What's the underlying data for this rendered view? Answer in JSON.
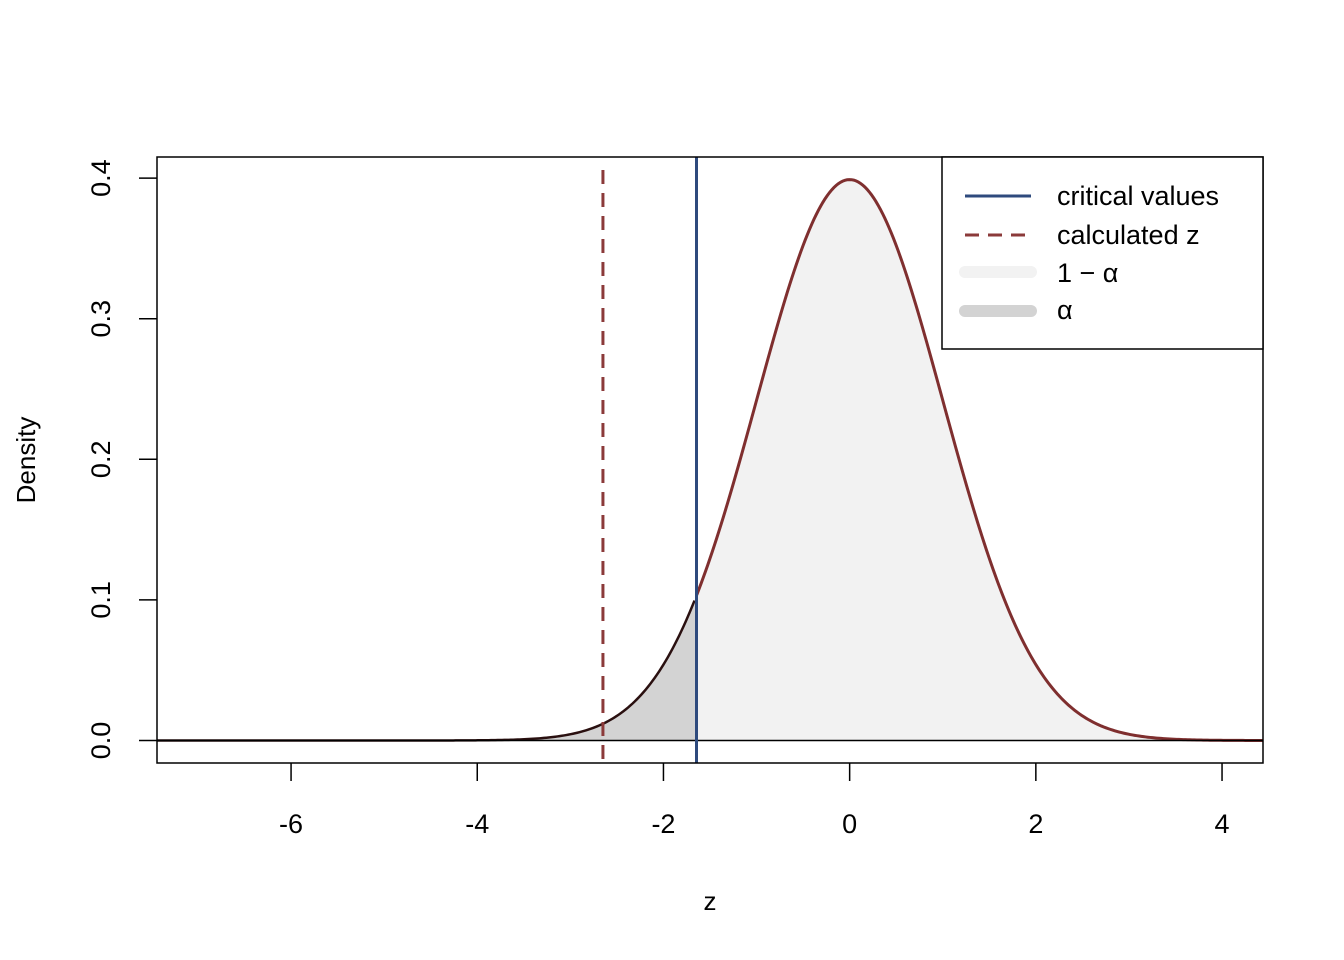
{
  "chart_data": {
    "type": "area",
    "title": "",
    "xlabel": "z",
    "ylabel": "Density",
    "xlim": [
      -7.44,
      4.44
    ],
    "ylim": [
      -0.016,
      0.415
    ],
    "x_ticks": [
      -6,
      -4,
      -2,
      0,
      2,
      4
    ],
    "x_tick_labels": [
      "-6",
      "-4",
      "-2",
      "0",
      "2",
      "4"
    ],
    "y_ticks": [
      0.0,
      0.1,
      0.2,
      0.3,
      0.4
    ],
    "y_tick_labels": [
      "0.0",
      "0.1",
      "0.2",
      "0.3",
      "0.4"
    ],
    "curve": {
      "distribution": "standard normal density",
      "x_range": [
        -7.44,
        4.44
      ],
      "color": "#7f2f2f"
    },
    "regions": [
      {
        "name": "1 − α",
        "x_from": -1.645,
        "x_to": 4.44,
        "fill": "#f2f2f2"
      },
      {
        "name": "α",
        "x_from": -7.44,
        "x_to": -1.645,
        "fill": "#d3d3d3"
      }
    ],
    "critical_value": {
      "x": -1.645,
      "color": "#2e4a7d",
      "style": "solid"
    },
    "calculated_z": {
      "x": -2.65,
      "color": "#8b3a3a",
      "style": "dashed"
    },
    "baseline": 0,
    "legend": {
      "placement": "top-right",
      "entries": [
        {
          "label": "critical values",
          "style": "line-solid",
          "color": "#2e4a7d"
        },
        {
          "label": "calculated z",
          "style": "line-dashed",
          "color": "#8b3a3a"
        },
        {
          "label": "1 − α",
          "style": "thick-fill",
          "color": "#f2f2f2"
        },
        {
          "label": "α",
          "style": "thick-fill",
          "color": "#d3d3d3"
        }
      ]
    }
  }
}
